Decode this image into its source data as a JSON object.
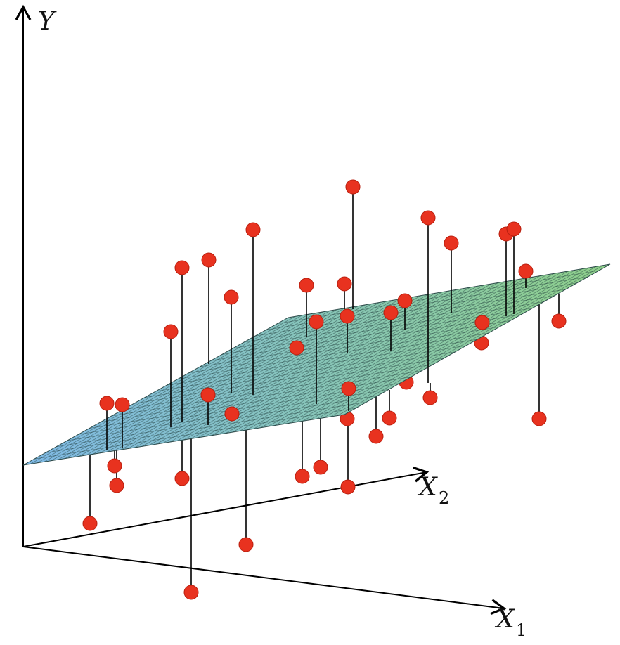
{
  "diagram": {
    "axes": {
      "y_label": "Y",
      "x1_label": "X",
      "x1_subscript": "1",
      "x2_label": "X",
      "x2_subscript": "2"
    },
    "plane": {
      "color_start": "#7fb9e6",
      "color_end": "#8fd08a",
      "mesh_color": "#1f3a3a"
    },
    "points": {
      "color": "#e8321f",
      "stroke": "#b81e0e",
      "line_color": "#000000"
    }
  }
}
